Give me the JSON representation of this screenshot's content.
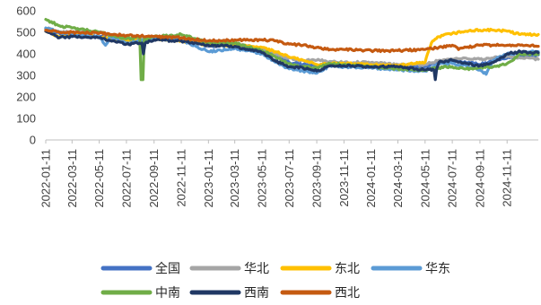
{
  "chart_data": {
    "type": "line",
    "title": "",
    "xlabel": "",
    "ylabel": "",
    "ylim": [
      0,
      600
    ],
    "yticks": [
      0,
      100,
      200,
      300,
      400,
      500,
      600
    ],
    "x_tick_labels": [
      "2022-01-11",
      "2022-03-11",
      "2022-05-11",
      "2022-07-11",
      "2022-09-11",
      "2022-11-11",
      "2023-01-11",
      "2023-03-11",
      "2023-05-11",
      "2023-07-11",
      "2023-09-11",
      "2023-11-11",
      "2024-01-11",
      "2024-03-11",
      "2024-05-11",
      "2024-07-11",
      "2024-09-11",
      "2024-11-11"
    ],
    "x_range": [
      "2022-01-11",
      "2025-01-20"
    ],
    "grid": false,
    "legend_position": "bottom",
    "series": [
      {
        "name": "全国",
        "color": "#4472C4",
        "x": [
          "2022-01-11",
          "2022-02-11",
          "2022-03-11",
          "2022-05-11",
          "2022-07-11",
          "2022-09-11",
          "2022-11-11",
          "2023-01-11",
          "2023-03-11",
          "2023-05-11",
          "2023-06-11",
          "2023-07-11",
          "2023-08-11",
          "2023-09-11",
          "2023-10-11",
          "2023-11-11",
          "2024-01-11",
          "2024-03-11",
          "2024-05-11",
          "2024-06-11",
          "2024-07-11",
          "2024-08-11",
          "2024-09-11",
          "2024-10-11",
          "2024-11-11",
          "2024-12-11",
          "2025-01-20"
        ],
        "y": [
          515,
          495,
          485,
          480,
          460,
          475,
          470,
          435,
          440,
          420,
          390,
          360,
          350,
          345,
          360,
          355,
          350,
          345,
          340,
          365,
          370,
          360,
          350,
          365,
          380,
          390,
          395
        ]
      },
      {
        "name": "华北",
        "color": "#A5A5A5",
        "x": [
          "2022-01-11",
          "2022-02-11",
          "2022-03-11",
          "2022-05-11",
          "2022-07-11",
          "2022-09-11",
          "2022-11-11",
          "2023-01-11",
          "2023-03-11",
          "2023-05-11",
          "2023-06-11",
          "2023-07-11",
          "2023-08-11",
          "2023-09-11",
          "2023-10-11",
          "2023-11-11",
          "2024-01-11",
          "2024-03-11",
          "2024-05-11",
          "2024-06-11",
          "2024-07-11",
          "2024-08-11",
          "2024-09-11",
          "2024-10-11",
          "2024-11-11",
          "2024-12-11",
          "2025-01-20"
        ],
        "y": [
          520,
          500,
          500,
          500,
          470,
          470,
          465,
          440,
          445,
          425,
          400,
          380,
          370,
          370,
          365,
          360,
          360,
          350,
          350,
          370,
          375,
          380,
          375,
          380,
          390,
          380,
          375
        ]
      },
      {
        "name": "东北",
        "color": "#FFC000",
        "x": [
          "2022-01-11",
          "2022-02-11",
          "2022-03-11",
          "2022-05-11",
          "2022-07-11",
          "2022-09-11",
          "2022-11-11",
          "2023-01-11",
          "2023-03-11",
          "2023-05-11",
          "2023-06-11",
          "2023-07-11",
          "2023-08-11",
          "2023-09-11",
          "2023-10-11",
          "2023-11-11",
          "2024-01-11",
          "2024-03-11",
          "2024-05-11",
          "2024-05-25",
          "2024-06-11",
          "2024-07-11",
          "2024-08-11",
          "2024-09-11",
          "2024-10-11",
          "2024-11-11",
          "2024-12-11",
          "2025-01-20"
        ],
        "y": [
          505,
          480,
          490,
          480,
          460,
          470,
          460,
          440,
          440,
          430,
          410,
          385,
          370,
          350,
          355,
          355,
          350,
          345,
          360,
          450,
          480,
          495,
          505,
          510,
          510,
          505,
          490,
          490
        ]
      },
      {
        "name": "华东",
        "color": "#5B9BD5",
        "x": [
          "2022-01-11",
          "2022-02-11",
          "2022-03-11",
          "2022-05-11",
          "2022-05-25",
          "2022-06-05",
          "2022-07-11",
          "2022-09-11",
          "2022-11-11",
          "2023-01-11",
          "2023-03-11",
          "2023-05-11",
          "2023-06-11",
          "2023-07-11",
          "2023-08-11",
          "2023-09-11",
          "2023-10-11",
          "2023-11-11",
          "2024-01-11",
          "2024-03-11",
          "2024-05-11",
          "2024-06-11",
          "2024-07-11",
          "2024-08-11",
          "2024-09-11",
          "2024-09-25",
          "2024-10-11",
          "2024-11-11",
          "2024-12-11",
          "2025-01-20"
        ],
        "y": [
          520,
          500,
          490,
          480,
          440,
          480,
          450,
          470,
          465,
          410,
          425,
          400,
          360,
          330,
          320,
          310,
          345,
          340,
          335,
          325,
          320,
          355,
          355,
          345,
          325,
          305,
          370,
          400,
          405,
          410
        ]
      },
      {
        "name": "中南",
        "color": "#70AD47",
        "x": [
          "2022-01-11",
          "2022-02-11",
          "2022-03-11",
          "2022-05-11",
          "2022-07-11",
          "2022-08-10",
          "2022-08-13",
          "2022-08-17",
          "2022-08-20",
          "2022-09-11",
          "2022-11-11",
          "2023-01-11",
          "2023-03-11",
          "2023-05-11",
          "2023-06-11",
          "2023-07-11",
          "2023-08-11",
          "2023-09-11",
          "2023-10-11",
          "2023-11-11",
          "2024-01-11",
          "2024-03-11",
          "2024-05-11",
          "2024-06-11",
          "2024-07-11",
          "2024-08-11",
          "2024-09-11",
          "2024-10-11",
          "2024-11-11",
          "2024-12-11",
          "2025-01-20"
        ],
        "y": [
          560,
          530,
          520,
          500,
          470,
          475,
          280,
          280,
          470,
          480,
          490,
          450,
          450,
          415,
          385,
          355,
          340,
          335,
          355,
          350,
          340,
          330,
          325,
          335,
          340,
          330,
          335,
          340,
          355,
          400,
          400
        ]
      },
      {
        "name": "西南",
        "color": "#203864",
        "x": [
          "2022-01-11",
          "2022-02-11",
          "2022-03-11",
          "2022-05-11",
          "2022-07-11",
          "2022-08-15",
          "2022-08-18",
          "2022-08-22",
          "2022-09-11",
          "2022-11-11",
          "2023-01-11",
          "2023-03-11",
          "2023-05-11",
          "2023-06-11",
          "2023-07-11",
          "2023-08-11",
          "2023-09-11",
          "2023-10-11",
          "2023-11-11",
          "2024-01-11",
          "2024-03-11",
          "2024-05-11",
          "2024-05-31",
          "2024-06-03",
          "2024-06-06",
          "2024-06-11",
          "2024-07-11",
          "2024-08-11",
          "2024-09-11",
          "2024-10-11",
          "2024-11-11",
          "2024-12-11",
          "2025-01-20"
        ],
        "y": [
          505,
          475,
          480,
          475,
          445,
          450,
          400,
          450,
          465,
          460,
          440,
          435,
          405,
          365,
          340,
          335,
          320,
          345,
          345,
          340,
          340,
          325,
          325,
          280,
          330,
          360,
          370,
          355,
          345,
          360,
          400,
          410,
          405
        ]
      },
      {
        "name": "西北",
        "color": "#C55A11",
        "x": [
          "2022-01-11",
          "2022-02-11",
          "2022-03-11",
          "2022-05-11",
          "2022-07-11",
          "2022-09-11",
          "2022-11-11",
          "2023-01-11",
          "2023-03-11",
          "2023-05-11",
          "2023-06-11",
          "2023-07-11",
          "2023-08-11",
          "2023-09-11",
          "2023-10-11",
          "2023-11-11",
          "2024-01-11",
          "2024-03-11",
          "2024-05-11",
          "2024-06-11",
          "2024-07-11",
          "2024-07-25",
          "2024-08-11",
          "2024-09-11",
          "2024-10-11",
          "2024-11-11",
          "2024-12-11",
          "2025-01-20"
        ],
        "y": [
          510,
          500,
          500,
          495,
          485,
          480,
          475,
          460,
          465,
          465,
          460,
          445,
          440,
          430,
          420,
          420,
          415,
          415,
          420,
          430,
          440,
          420,
          430,
          440,
          440,
          440,
          440,
          435
        ]
      }
    ]
  }
}
